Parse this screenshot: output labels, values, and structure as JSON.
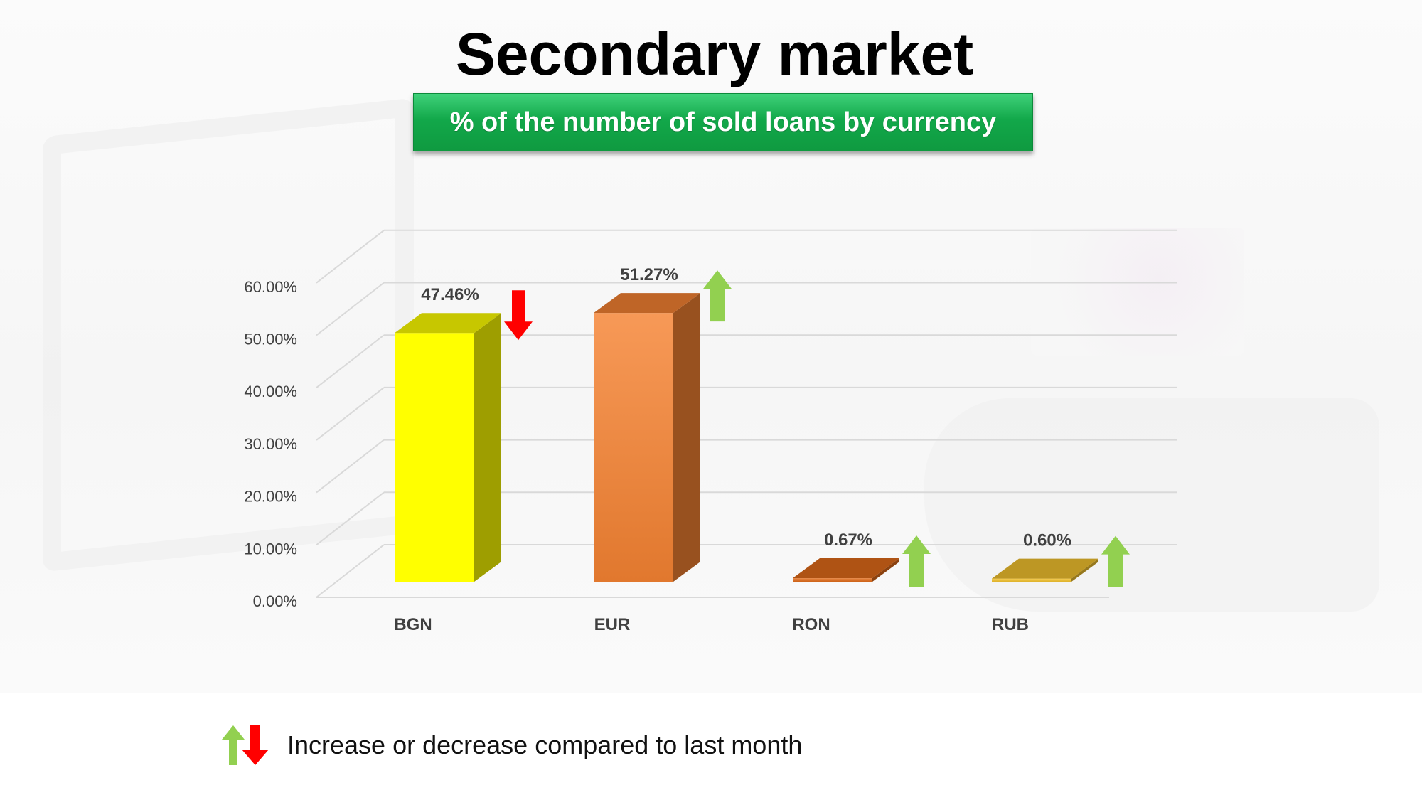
{
  "title": "Secondary market",
  "subtitle": "% of the number of sold loans by currency",
  "legend_text": "Increase or decrease compared to last month",
  "legend_icons": [
    "up-arrow-green",
    "down-arrow-red"
  ],
  "colors": {
    "up_arrow": "#92d050",
    "down_arrow": "#ff0000",
    "subtitle_bg": "#12a84a"
  },
  "chart_data": {
    "type": "bar",
    "style": "3d-column",
    "categories": [
      "BGN",
      "EUR",
      "RON",
      "RUB"
    ],
    "values": [
      47.46,
      51.27,
      0.67,
      0.6
    ],
    "value_labels": [
      "47.46%",
      "51.27%",
      "0.67%",
      "0.60%"
    ],
    "trend": [
      "down",
      "up",
      "up",
      "up"
    ],
    "bar_colors": [
      "#ffff00",
      "#f58232",
      "#e06a1a",
      "#f2c12e"
    ],
    "y_ticks": [
      "0.00%",
      "10.00%",
      "20.00%",
      "30.00%",
      "40.00%",
      "50.00%",
      "60.00%"
    ],
    "ylim": [
      0,
      60
    ],
    "grid": true
  }
}
